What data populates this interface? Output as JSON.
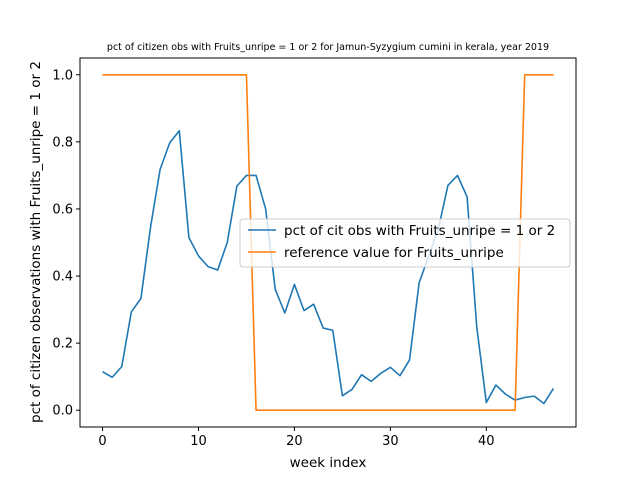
{
  "chart_data": {
    "type": "line",
    "title": "pct of citizen obs with Fruits_unripe = 1 or 2 for Jamun-Syzygium cumini in kerala, year 2019",
    "xlabel": "week index",
    "ylabel": "pct of citizen observations with Fruits_unripe = 1 or 2",
    "xlim": [
      -2.35,
      49.35
    ],
    "ylim": [
      -0.05,
      1.05
    ],
    "xticks": [
      0,
      10,
      20,
      30,
      40
    ],
    "yticks": [
      0.0,
      0.2,
      0.4,
      0.6,
      0.8,
      1.0
    ],
    "xtick_labels": [
      "0",
      "10",
      "20",
      "30",
      "40"
    ],
    "ytick_labels": [
      "0.0",
      "0.2",
      "0.4",
      "0.6",
      "0.8",
      "1.0"
    ],
    "grid": false,
    "legend_position": "center-right",
    "x": [
      0,
      1,
      2,
      3,
      4,
      5,
      6,
      7,
      8,
      9,
      10,
      11,
      12,
      13,
      14,
      15,
      16,
      17,
      18,
      19,
      20,
      21,
      22,
      23,
      24,
      25,
      26,
      27,
      28,
      29,
      30,
      31,
      32,
      33,
      34,
      35,
      36,
      37,
      38,
      39,
      40,
      41,
      42,
      43,
      44,
      45,
      46,
      47
    ],
    "series": [
      {
        "name": "pct of cit obs with Fruits_unripe = 1 or 2",
        "color": "#1f77b4",
        "values": [
          0.115,
          0.098,
          0.13,
          0.293,
          0.333,
          0.545,
          0.718,
          0.797,
          0.833,
          0.515,
          0.46,
          0.428,
          0.418,
          0.5,
          0.668,
          0.7,
          0.7,
          0.6,
          0.36,
          0.29,
          0.375,
          0.297,
          0.316,
          0.245,
          0.238,
          0.043,
          0.062,
          0.106,
          0.086,
          0.11,
          0.128,
          0.103,
          0.15,
          0.38,
          0.46,
          0.54,
          0.67,
          0.7,
          0.636,
          0.25,
          0.023,
          0.075,
          0.048,
          0.03,
          0.038,
          0.042,
          0.02,
          0.065
        ]
      },
      {
        "name": "reference value for Fruits_unripe",
        "color": "#ff7f0e",
        "values": [
          1,
          1,
          1,
          1,
          1,
          1,
          1,
          1,
          1,
          1,
          1,
          1,
          1,
          1,
          1,
          1,
          0,
          0,
          0,
          0,
          0,
          0,
          0,
          0,
          0,
          0,
          0,
          0,
          0,
          0,
          0,
          0,
          0,
          0,
          0,
          0,
          0,
          0,
          0,
          0,
          0,
          0,
          0,
          0,
          1,
          1,
          1,
          1
        ]
      }
    ]
  }
}
